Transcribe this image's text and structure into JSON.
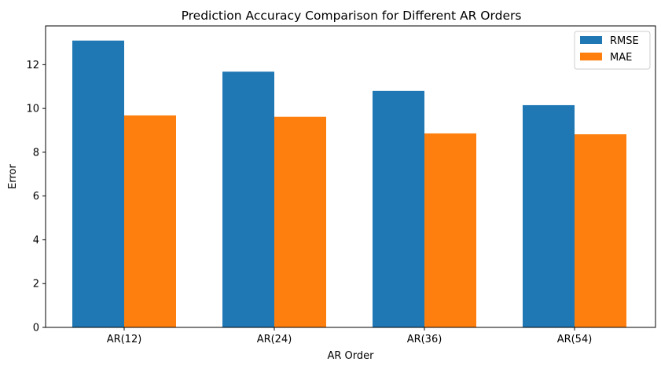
{
  "chart_data": {
    "type": "bar",
    "title": "Prediction Accuracy Comparison for Different AR Orders",
    "xlabel": "AR Order",
    "ylabel": "Error",
    "categories": [
      "AR(12)",
      "AR(24)",
      "AR(36)",
      "AR(54)"
    ],
    "series": [
      {
        "name": "RMSE",
        "color": "#1f77b4",
        "values": [
          13.1,
          11.68,
          10.8,
          10.15
        ]
      },
      {
        "name": "MAE",
        "color": "#ff7f0e",
        "values": [
          9.68,
          9.62,
          8.86,
          8.82
        ]
      }
    ],
    "ylim": [
      0,
      13.77
    ],
    "yticks": [
      0,
      2,
      4,
      6,
      8,
      10,
      12
    ],
    "grid": false,
    "legend_position": "top-right"
  }
}
